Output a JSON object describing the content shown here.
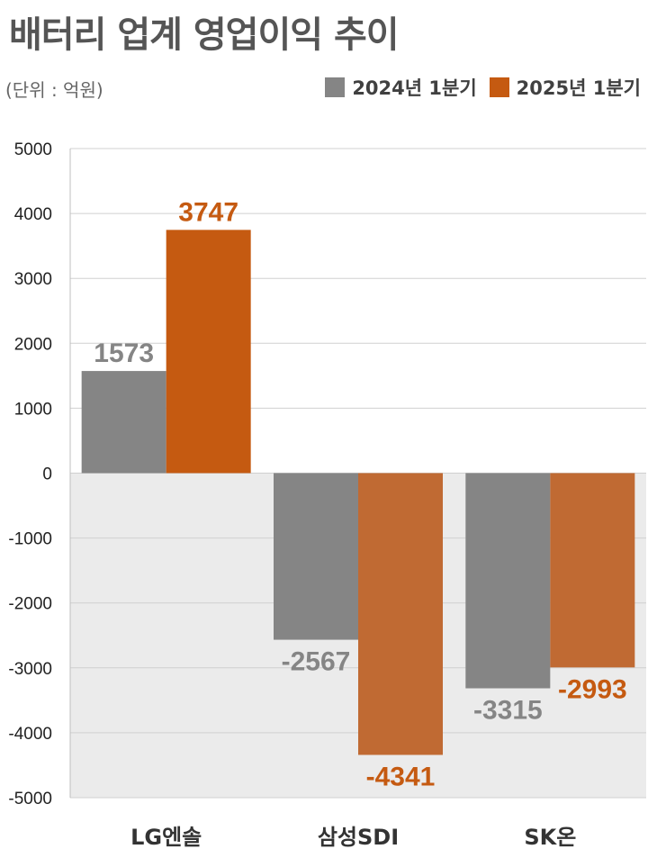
{
  "title": "배터리 업계 영업이익 추이",
  "unit_label": "(단위 : 억원)",
  "colors": {
    "series_2024": "#858585",
    "series_2025": "#C55A11",
    "series_2025_negative": "#C06A33",
    "negative_region": "#EBEBEB",
    "grid": "#D0D0D0"
  },
  "chart_data": {
    "type": "bar",
    "categories": [
      "LG엔솔",
      "삼성SDI",
      "SK온"
    ],
    "series": [
      {
        "name": "2024년 1분기",
        "values": [
          1573,
          -2567,
          -3315
        ]
      },
      {
        "name": "2025년 1분기",
        "values": [
          3747,
          -4341,
          -2993
        ]
      }
    ],
    "ylim": [
      -5000,
      5000
    ],
    "yticks": [
      5000,
      4000,
      3000,
      2000,
      1000,
      0,
      -1000,
      -2000,
      -3000,
      -4000,
      -5000
    ],
    "grid": true,
    "legend_position": "top-right",
    "data_labels": true
  }
}
